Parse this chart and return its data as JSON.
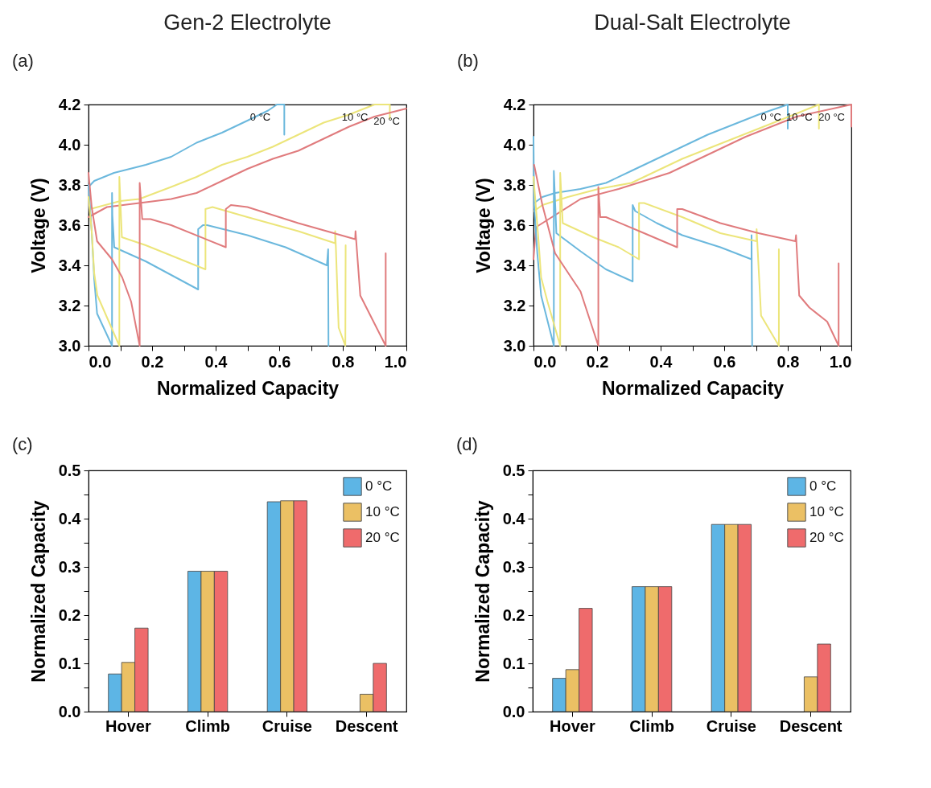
{
  "chart_data": [
    {
      "type": "line",
      "title": "Gen-2 Electrolyte",
      "annotations": [
        "(a)"
      ],
      "xlabel": "Normalized Capacity",
      "ylabel": "Voltage (V)",
      "xlim": [
        0,
        1
      ],
      "ylim": [
        3,
        4.2
      ],
      "xticks": [
        {
          "value": 0,
          "label": "0.0"
        },
        {
          "value": 0.1,
          "label": null
        },
        0.2,
        {
          "value": 0.3,
          "label": null
        },
        0.4,
        {
          "value": 0.5,
          "label": null
        },
        0.6,
        {
          "value": 0.7,
          "label": null
        },
        0.8,
        {
          "value": 0.9,
          "label": null
        },
        {
          "value": 1,
          "label": "1.0"
        }
      ],
      "yticks": [
        {
          "value": 3,
          "label": "3.0"
        },
        3.2,
        3.4,
        3.6,
        3.8,
        {
          "value": 4,
          "label": "4.0"
        },
        4.2
      ],
      "series": [
        {
          "name": "0 °C",
          "color": "#6bb8dd",
          "x": [
            0,
            0.018,
            0.08,
            0.18,
            0.26,
            0.34,
            0.42,
            0.5,
            0.565,
            0.593,
            0.616,
            0.616
          ],
          "values": [
            3.79,
            3.82,
            3.86,
            3.9,
            3.94,
            4.01,
            4.06,
            4.12,
            4.17,
            4.2,
            4.2,
            4.05
          ]
        },
        {
          "name": "10 °C",
          "color": "#ece57a",
          "x": [
            0.005,
            0.1,
            0.16,
            0.26,
            0.34,
            0.42,
            0.5,
            0.58,
            0.66,
            0.74,
            0.82,
            0.9,
            0.948,
            0.948
          ],
          "values": [
            3.68,
            3.72,
            3.73,
            3.79,
            3.84,
            3.9,
            3.94,
            3.99,
            4.05,
            4.11,
            4.15,
            4.2,
            4.2,
            4.13
          ]
        },
        {
          "name": "20 °C",
          "color": "#e07b7d",
          "x": [
            0,
            0.058,
            0.16,
            0.26,
            0.34,
            0.42,
            0.5,
            0.58,
            0.66,
            0.74,
            0.82,
            0.9,
            1
          ],
          "values": [
            3.64,
            3.69,
            3.71,
            3.73,
            3.76,
            3.82,
            3.88,
            3.93,
            3.97,
            4.03,
            4.09,
            4.14,
            4.18
          ]
        },
        {
          "color": "#6bb8dd",
          "x": [
            0,
            0.01,
            0.018,
            0.027,
            0.074,
            0.074,
            0.075,
            0.081,
            0.18,
            0.345,
            0.345,
            0.36,
            0.373,
            0.5,
            0.62,
            0.75,
            0.754,
            0.755
          ],
          "values": [
            3.8,
            3.57,
            3.33,
            3.16,
            3,
            3.76,
            3.65,
            3.49,
            3.42,
            3.28,
            3.58,
            3.6,
            3.6,
            3.55,
            3.49,
            3.4,
            3.48,
            3
          ]
        },
        {
          "color": "#ece57a",
          "x": [
            0,
            0.01,
            0.018,
            0.028,
            0.097,
            0.097,
            0.105,
            0.18,
            0.368,
            0.368,
            0.39,
            0.5,
            0.66,
            0.776,
            0.776,
            0.778,
            0.787,
            0.808,
            0.809
          ],
          "values": [
            3.74,
            3.57,
            3.36,
            3.25,
            3,
            3.84,
            3.54,
            3.5,
            3.38,
            3.68,
            3.69,
            3.64,
            3.57,
            3.51,
            3.57,
            3.5,
            3.09,
            3,
            3.5
          ]
        },
        {
          "color": "#e07b7d",
          "x": [
            0,
            0.01,
            0.027,
            0.074,
            0.106,
            0.134,
            0.161,
            0.161,
            0.169,
            0.195,
            0.26,
            0.432,
            0.432,
            0.448,
            0.5,
            0.66,
            0.839,
            0.84,
            0.855,
            0.935,
            0.935
          ],
          "values": [
            3.86,
            3.69,
            3.52,
            3.43,
            3.34,
            3.22,
            3,
            3.81,
            3.63,
            3.63,
            3.6,
            3.49,
            3.68,
            3.7,
            3.69,
            3.61,
            3.53,
            3.57,
            3.25,
            3,
            3.46
          ]
        }
      ]
    },
    {
      "type": "line",
      "title": "Dual-Salt Electrolyte",
      "annotations": [
        "(b)"
      ],
      "xlabel": "Normalized Capacity",
      "ylabel": "Voltage (V)",
      "xlim": [
        0,
        1
      ],
      "ylim": [
        3,
        4.2
      ],
      "xticks": [
        {
          "value": 0,
          "label": "0.0"
        },
        {
          "value": 0.1,
          "label": null
        },
        0.2,
        {
          "value": 0.3,
          "label": null
        },
        0.4,
        {
          "value": 0.5,
          "label": null
        },
        0.6,
        {
          "value": 0.7,
          "label": null
        },
        0.8,
        {
          "value": 0.9,
          "label": null
        },
        {
          "value": 1,
          "label": "1.0"
        }
      ],
      "yticks": [
        {
          "value": 3,
          "label": "3.0"
        },
        3.2,
        3.4,
        3.6,
        3.8,
        {
          "value": 4,
          "label": "4.0"
        },
        4.2
      ],
      "series": [
        {
          "name": "0 °C",
          "color": "#6bb8dd",
          "x": [
            0.002,
            0.028,
            0.068,
            0.148,
            0.228,
            0.308,
            0.388,
            0.468,
            0.548,
            0.628,
            0.708,
            0.8,
            0.8
          ],
          "values": [
            3.71,
            3.74,
            3.76,
            3.78,
            3.81,
            3.87,
            3.93,
            3.99,
            4.05,
            4.1,
            4.15,
            4.2,
            4.08
          ]
        },
        {
          "name": "10 °C",
          "color": "#ece57a",
          "x": [
            0.002,
            0.028,
            0.108,
            0.204,
            0.308,
            0.388,
            0.468,
            0.548,
            0.628,
            0.708,
            0.788,
            0.898,
            0.898
          ],
          "values": [
            3.67,
            3.7,
            3.74,
            3.78,
            3.81,
            3.87,
            3.93,
            3.98,
            4.03,
            4.08,
            4.13,
            4.2,
            4.08
          ]
        },
        {
          "name": "20 °C",
          "color": "#e07b7d",
          "x": [
            0,
            0.008,
            0.068,
            0.148,
            0.268,
            0.348,
            0.428,
            0.508,
            0.588,
            0.668,
            0.748,
            0.828,
            1,
            1
          ],
          "values": [
            3.43,
            3.59,
            3.65,
            3.73,
            3.78,
            3.82,
            3.86,
            3.92,
            3.98,
            4.04,
            4.09,
            4.14,
            4.2,
            4.09
          ]
        },
        {
          "color": "#6bb8dd",
          "x": [
            0,
            0.002,
            0.012,
            0.024,
            0.064,
            0.064,
            0.072,
            0.148,
            0.228,
            0.312,
            0.312,
            0.32,
            0.388,
            0.468,
            0.588,
            0.686,
            0.686,
            0.688
          ],
          "values": [
            4.04,
            3.7,
            3.46,
            3.25,
            3,
            3.87,
            3.56,
            3.47,
            3.38,
            3.32,
            3.7,
            3.67,
            3.61,
            3.55,
            3.49,
            3.43,
            3.55,
            3
          ]
        },
        {
          "color": "#ece57a",
          "x": [
            0,
            0.016,
            0.024,
            0.044,
            0.084,
            0.084,
            0.092,
            0.188,
            0.268,
            0.332,
            0.332,
            0.348,
            0.468,
            0.588,
            0.702,
            0.702,
            0.716,
            0.772,
            0.772
          ],
          "values": [
            3.84,
            3.52,
            3.34,
            3.22,
            3,
            3.86,
            3.61,
            3.54,
            3.49,
            3.43,
            3.71,
            3.71,
            3.64,
            3.56,
            3.52,
            3.58,
            3.15,
            3,
            3.48
          ]
        },
        {
          "color": "#e07b7d",
          "x": [
            0.002,
            0.028,
            0.068,
            0.148,
            0.204,
            0.204,
            0.21,
            0.228,
            0.348,
            0.452,
            0.452,
            0.468,
            0.588,
            0.708,
            0.824,
            0.826,
            0.836,
            0.868,
            0.924,
            0.96,
            0.96
          ],
          "values": [
            3.9,
            3.7,
            3.46,
            3.27,
            3,
            3.79,
            3.64,
            3.64,
            3.56,
            3.49,
            3.68,
            3.68,
            3.61,
            3.56,
            3.52,
            3.55,
            3.25,
            3.19,
            3.12,
            3,
            3.41
          ]
        }
      ]
    },
    {
      "type": "bar",
      "annotations": [
        "(c)"
      ],
      "ylabel": "Normalized Capacity",
      "legend": "top right",
      "categories": [
        "Hover",
        "Climb",
        "Cruise",
        "Descent"
      ],
      "ylim": [
        0,
        0.5
      ],
      "yticks": [
        {
          "value": 0,
          "label": "0.0"
        },
        {
          "value": 0.05,
          "label": null
        },
        0.1,
        {
          "value": 0.15,
          "label": null
        },
        0.2,
        {
          "value": 0.25,
          "label": null
        },
        0.3,
        {
          "value": 0.35,
          "label": null
        },
        0.4,
        {
          "value": 0.45,
          "label": null
        },
        0.5
      ],
      "series": [
        {
          "name": "0 °C",
          "color": "#5db5e5",
          "values": [
            0.078,
            0.291,
            0.435,
            null
          ]
        },
        {
          "name": "10 °C",
          "color": "#ebc064",
          "values": [
            0.102,
            0.291,
            0.437,
            0.036
          ]
        },
        {
          "name": "20 °C",
          "color": "#ef6b6c",
          "values": [
            0.173,
            0.291,
            0.437,
            0.1
          ]
        }
      ]
    },
    {
      "type": "bar",
      "annotations": [
        "(d)"
      ],
      "ylabel": "Normalized Capacity",
      "legend": "top right",
      "categories": [
        "Hover",
        "Climb",
        "Cruise",
        "Descent"
      ],
      "ylim": [
        0,
        0.5
      ],
      "yticks": [
        {
          "value": 0,
          "label": "0.0"
        },
        {
          "value": 0.05,
          "label": null
        },
        0.1,
        {
          "value": 0.15,
          "label": null
        },
        0.2,
        {
          "value": 0.25,
          "label": null
        },
        0.3,
        {
          "value": 0.35,
          "label": null
        },
        0.4,
        {
          "value": 0.45,
          "label": null
        },
        0.5
      ],
      "series": [
        {
          "name": "0 °C",
          "color": "#5db5e5",
          "values": [
            0.069,
            0.259,
            0.388,
            null
          ]
        },
        {
          "name": "10 °C",
          "color": "#ebc064",
          "values": [
            0.087,
            0.259,
            0.388,
            0.072
          ]
        },
        {
          "name": "20 °C",
          "color": "#ef6b6c",
          "values": [
            0.214,
            0.259,
            0.388,
            0.14
          ]
        }
      ]
    }
  ]
}
